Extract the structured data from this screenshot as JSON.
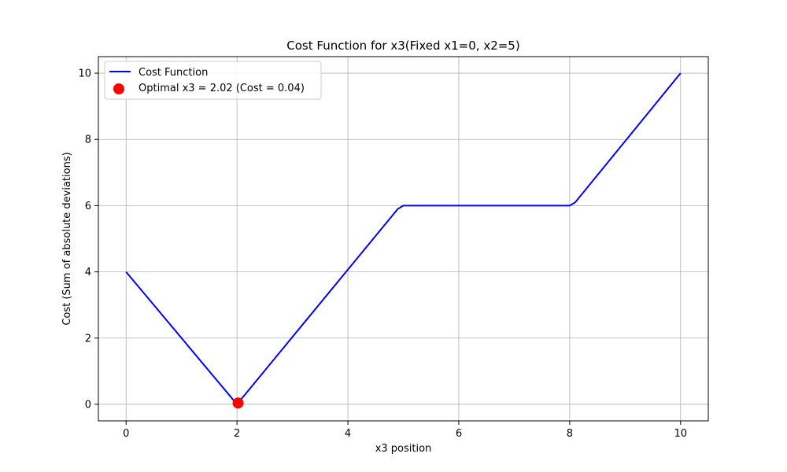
{
  "chart_data": {
    "type": "line",
    "title": "Cost Function for x3(Fixed x1=0, x2=5)",
    "xlabel": "x3 position",
    "ylabel": "Cost (Sum of absolute deviations)",
    "xlim": [
      -0.5,
      10.5
    ],
    "ylim": [
      -0.5,
      10.5
    ],
    "xticks": [
      0,
      2,
      4,
      6,
      8,
      10
    ],
    "yticks": [
      0,
      2,
      4,
      6,
      8,
      10
    ],
    "xtick_labels": [
      "0",
      "2",
      "4",
      "6",
      "8",
      "10"
    ],
    "ytick_labels": [
      "0",
      "2",
      "4",
      "6",
      "8",
      "10"
    ],
    "grid": true,
    "legend_position": "top-left",
    "series": [
      {
        "name": "Cost Function",
        "color": "#0000ff",
        "x": [
          0,
          2,
          4.9,
          5,
          5.1,
          7.9,
          8,
          8.1,
          10
        ],
        "y": [
          4,
          0,
          5.9,
          6,
          6,
          6,
          6,
          6.1,
          10
        ]
      }
    ],
    "optimal_point": {
      "label": "Optimal x3 = 2.02 (Cost = 0.04)",
      "x": 2.02,
      "y": 0.04,
      "color": "#ff0000"
    }
  }
}
